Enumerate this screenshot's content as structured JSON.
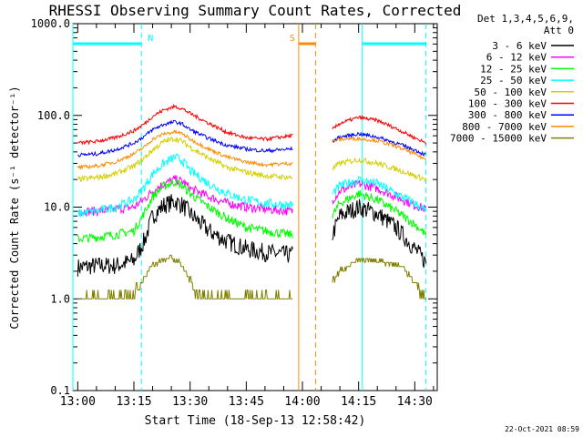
{
  "chart_data": {
    "type": "line",
    "title": "RHESSI Observing Summary Count Rates, Corrected",
    "xlabel": "Start Time (18-Sep-13 12:58:42)",
    "ylabel": "Corrected Count Rate (s⁻¹ detector⁻¹)",
    "yscale": "log",
    "ylim": [
      0.1,
      1000
    ],
    "xlim": [
      "12:58:42",
      "14:36:00"
    ],
    "x_ticks": [
      "13:00",
      "13:15",
      "13:30",
      "13:45",
      "14:00",
      "14:15",
      "14:30"
    ],
    "y_ticks": [
      "0.1",
      "1.0",
      "10.0",
      "100.0",
      "1000.0"
    ],
    "legend_header": [
      "Det 1,3,4,5,6,9,",
      "Att 0"
    ],
    "legend_position": "right",
    "data_gaps": [
      [
        "13:57:30",
        "14:08:00"
      ]
    ],
    "series": [
      {
        "name": "3 - 6 keV",
        "color": "#000000",
        "x": [
          "13:00",
          "13:05",
          "13:10",
          "13:15",
          "13:18",
          "13:20",
          "13:23",
          "13:26",
          "13:28",
          "13:30",
          "13:35",
          "13:40",
          "13:45",
          "13:50",
          "13:57",
          "14:08",
          "14:10",
          "14:15",
          "14:20",
          "14:25",
          "14:30",
          "14:33"
        ],
        "values": [
          2.2,
          2.3,
          2.3,
          2.6,
          4.5,
          8.0,
          10.5,
          11.5,
          10.5,
          8.5,
          5.5,
          4.2,
          3.5,
          3.2,
          3.0,
          5.0,
          8.0,
          10.0,
          8.5,
          6.0,
          3.5,
          2.5
        ]
      },
      {
        "name": "6 - 12 keV",
        "color": "#ff00ff",
        "x": [
          "13:00",
          "13:05",
          "13:10",
          "13:15",
          "13:18",
          "13:20",
          "13:23",
          "13:26",
          "13:28",
          "13:30",
          "13:35",
          "13:40",
          "13:45",
          "13:50",
          "13:57",
          "14:08",
          "14:10",
          "14:15",
          "14:20",
          "14:25",
          "14:30",
          "14:33"
        ],
        "values": [
          9.0,
          9.0,
          9.5,
          10.0,
          12.5,
          15.0,
          18.0,
          20.0,
          19.0,
          16.0,
          13.0,
          11.0,
          10.0,
          9.5,
          9.0,
          12.0,
          15.0,
          18.0,
          16.0,
          13.0,
          10.5,
          9.5
        ]
      },
      {
        "name": "12 - 25 keV",
        "color": "#00ff00",
        "x": [
          "13:00",
          "13:05",
          "13:10",
          "13:15",
          "13:18",
          "13:20",
          "13:23",
          "13:26",
          "13:28",
          "13:30",
          "13:35",
          "13:40",
          "13:45",
          "13:50",
          "13:57",
          "14:08",
          "14:10",
          "14:15",
          "14:20",
          "14:25",
          "14:30",
          "14:33"
        ],
        "values": [
          4.5,
          4.7,
          5.0,
          5.5,
          9.0,
          13.0,
          17.0,
          19.0,
          17.0,
          14.0,
          10.0,
          7.5,
          6.0,
          5.5,
          5.0,
          8.0,
          11.0,
          14.0,
          12.0,
          9.0,
          6.5,
          5.0
        ]
      },
      {
        "name": "25 - 50 keV",
        "color": "#00ffff",
        "x": [
          "13:00",
          "13:05",
          "13:10",
          "13:15",
          "13:18",
          "13:20",
          "13:23",
          "13:26",
          "13:28",
          "13:30",
          "13:35",
          "13:40",
          "13:45",
          "13:50",
          "13:57",
          "14:08",
          "14:10",
          "14:15",
          "14:20",
          "14:25",
          "14:30",
          "14:33"
        ],
        "values": [
          8.5,
          9.0,
          10.0,
          12.0,
          17.0,
          23.0,
          30.0,
          35.0,
          32.0,
          25.0,
          18.0,
          14.0,
          12.0,
          11.0,
          10.5,
          14.0,
          17.0,
          20.0,
          18.0,
          14.0,
          11.0,
          9.0
        ]
      },
      {
        "name": "50 - 100 keV",
        "color": "#d4d000",
        "x": [
          "13:00",
          "13:05",
          "13:10",
          "13:15",
          "13:18",
          "13:20",
          "13:23",
          "13:26",
          "13:28",
          "13:30",
          "13:35",
          "13:40",
          "13:45",
          "13:50",
          "13:57",
          "14:08",
          "14:10",
          "14:15",
          "14:20",
          "14:25",
          "14:30",
          "14:33"
        ],
        "values": [
          20.0,
          21.0,
          23.0,
          28.0,
          35.0,
          42.0,
          52.0,
          56.0,
          52.0,
          45.0,
          34.0,
          27.0,
          24.0,
          22.0,
          21.0,
          26.0,
          30.0,
          33.0,
          30.0,
          26.0,
          22.0,
          20.0
        ]
      },
      {
        "name": "100 - 300 keV",
        "color": "#ff0000",
        "x": [
          "13:00",
          "13:05",
          "13:10",
          "13:15",
          "13:18",
          "13:20",
          "13:23",
          "13:26",
          "13:28",
          "13:30",
          "13:35",
          "13:40",
          "13:45",
          "13:50",
          "13:57",
          "14:08",
          "14:10",
          "14:15",
          "14:20",
          "14:25",
          "14:30",
          "14:33"
        ],
        "values": [
          50.0,
          52.0,
          57.0,
          68.0,
          82.0,
          98.0,
          115.0,
          125.0,
          118.0,
          105.0,
          82.0,
          65.0,
          57.0,
          55.0,
          60.0,
          70.0,
          82.0,
          95.0,
          88.0,
          72.0,
          57.0,
          50.0
        ]
      },
      {
        "name": "300 - 800 keV",
        "color": "#0000ff",
        "x": [
          "13:00",
          "13:05",
          "13:10",
          "13:15",
          "13:18",
          "13:20",
          "13:23",
          "13:26",
          "13:28",
          "13:30",
          "13:35",
          "13:40",
          "13:45",
          "13:50",
          "13:57",
          "14:08",
          "14:10",
          "14:15",
          "14:20",
          "14:25",
          "14:30",
          "14:33"
        ],
        "values": [
          37.0,
          38.0,
          42.0,
          50.0,
          60.0,
          70.0,
          80.0,
          85.0,
          80.0,
          70.0,
          56.0,
          47.0,
          43.0,
          41.0,
          43.0,
          52.0,
          58.0,
          63.0,
          58.0,
          50.0,
          42.0,
          37.0
        ]
      },
      {
        "name": "800 - 7000 keV",
        "color": "#ff8c00",
        "x": [
          "13:00",
          "13:05",
          "13:10",
          "13:15",
          "13:18",
          "13:20",
          "13:23",
          "13:26",
          "13:28",
          "13:30",
          "13:35",
          "13:40",
          "13:45",
          "13:50",
          "13:57",
          "14:08",
          "14:10",
          "14:15",
          "14:20",
          "14:25",
          "14:30",
          "14:33"
        ],
        "values": [
          27.0,
          28.0,
          31.0,
          38.0,
          46.0,
          55.0,
          63.0,
          66.0,
          63.0,
          55.0,
          43.0,
          35.0,
          31.0,
          29.0,
          30.0,
          52.0,
          55.0,
          56.0,
          53.0,
          46.0,
          38.0,
          33.0
        ]
      },
      {
        "name": "7000 - 15000 keV",
        "color": "#808000",
        "x": [
          "13:00",
          "13:05",
          "13:10",
          "13:14",
          "13:17",
          "13:19",
          "13:22",
          "13:25",
          "13:27",
          "13:29",
          "13:31",
          "13:35",
          "13:45",
          "13:57",
          "14:08",
          "14:10",
          "14:12",
          "14:15",
          "14:20",
          "14:25",
          "14:28",
          "14:30",
          "14:33"
        ],
        "values": [
          1.0,
          1.0,
          1.0,
          1.0,
          1.5,
          2.1,
          2.6,
          2.8,
          2.5,
          2.0,
          1.2,
          1.0,
          1.0,
          1.0,
          1.5,
          2.0,
          2.3,
          2.6,
          2.6,
          2.4,
          2.0,
          1.5,
          1.0
        ]
      }
    ],
    "annotations": [
      {
        "label": "N",
        "color": "#00ffff",
        "bars": [
          [
            "12:58:42",
            "13:17:00"
          ],
          [
            "14:16:00",
            "14:33:00"
          ]
        ]
      },
      {
        "label": "S",
        "color": "#ff8c00",
        "bars": [
          [
            "13:59:00",
            "14:03:30"
          ]
        ]
      }
    ]
  },
  "footer": {
    "timestamp": "22-Oct-2021 08:59"
  }
}
